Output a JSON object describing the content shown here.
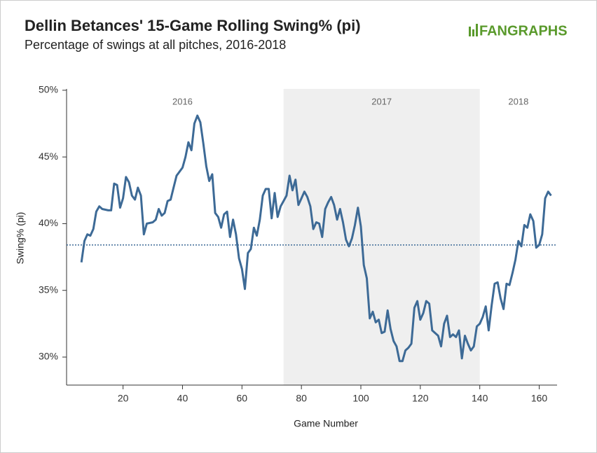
{
  "chart_data": {
    "type": "line",
    "title": "Dellin Betances' 15-Game Rolling Swing% (pi)",
    "subtitle": "Percentage of swings at all pitches, 2016-2018",
    "logo": "FANGRAPHS",
    "x_label": "Game Number",
    "y_label": "Swing% (pi)",
    "xlim": [
      1,
      166
    ],
    "ylim": [
      27.9,
      50.1
    ],
    "xticks": [
      20,
      40,
      60,
      80,
      100,
      120,
      140,
      160
    ],
    "yticks": [
      {
        "value": 30,
        "label": "30%"
      },
      {
        "value": 35,
        "label": "35%"
      },
      {
        "value": 40,
        "label": "40%"
      },
      {
        "value": 45,
        "label": "45%"
      },
      {
        "value": 50,
        "label": "50%"
      }
    ],
    "highlight": [
      74,
      140
    ],
    "average": 38.4,
    "annotations": [
      {
        "text": "2016",
        "x": 40
      },
      {
        "text": "2017",
        "x": 107
      },
      {
        "text": "2018",
        "x": 153
      }
    ],
    "series": [
      {
        "name": "Swing% (pi)",
        "color": "#3d6a96",
        "x": [
          6,
          7,
          8,
          9,
          10,
          11,
          12,
          13,
          15,
          16,
          17,
          18,
          19,
          20,
          21,
          22,
          23,
          24,
          25,
          26,
          27,
          28,
          30,
          31,
          32,
          33,
          34,
          35,
          36,
          37,
          38,
          40,
          41,
          42,
          43,
          44,
          45,
          46,
          47,
          48,
          49,
          50,
          51,
          52,
          53,
          54,
          55,
          56,
          57,
          58,
          59,
          60,
          61,
          62,
          63,
          64,
          65,
          66,
          67,
          68,
          69,
          70,
          71,
          72,
          73,
          74,
          75,
          76,
          77,
          78,
          79,
          80,
          81,
          82,
          83,
          84,
          85,
          86,
          87,
          88,
          89,
          90,
          91,
          92,
          93,
          94,
          95,
          96,
          97,
          98,
          99,
          100,
          101,
          102,
          103,
          104,
          105,
          106,
          107,
          108,
          109,
          110,
          111,
          112,
          113,
          114,
          115,
          116,
          117,
          118,
          119,
          120,
          121,
          122,
          123,
          124,
          125,
          126,
          127,
          128,
          129,
          130,
          131,
          132,
          133,
          134,
          135,
          136,
          137,
          138,
          139,
          140,
          141,
          142,
          143,
          144,
          145,
          146,
          147,
          148,
          149,
          150,
          151,
          152,
          153,
          154,
          155,
          156,
          157,
          158,
          159,
          160,
          161,
          162,
          163,
          164
        ],
        "values": [
          37.1,
          38.7,
          39.2,
          39.1,
          39.6,
          40.9,
          41.3,
          41.1,
          41.0,
          41.0,
          43.0,
          42.9,
          41.2,
          41.9,
          43.5,
          43.1,
          42.1,
          41.8,
          42.7,
          42.1,
          39.2,
          40.0,
          40.1,
          40.3,
          41.1,
          40.6,
          40.8,
          41.7,
          41.8,
          42.7,
          43.6,
          44.2,
          45.0,
          46.1,
          45.5,
          47.5,
          48.1,
          47.6,
          46.0,
          44.3,
          43.2,
          43.7,
          40.8,
          40.5,
          39.7,
          40.7,
          40.9,
          39.0,
          40.3,
          39.2,
          37.4,
          36.6,
          35.1,
          37.8,
          38.1,
          39.7,
          39.1,
          40.3,
          42.1,
          42.6,
          42.6,
          40.4,
          42.3,
          40.5,
          41.3,
          41.7,
          42.1,
          43.6,
          42.5,
          43.3,
          41.4,
          41.9,
          42.4,
          42.0,
          41.3,
          39.6,
          40.1,
          40.0,
          39.0,
          41.1,
          41.6,
          42.0,
          41.4,
          40.3,
          41.1,
          40.1,
          38.8,
          38.3,
          38.9,
          39.9,
          41.2,
          39.8,
          36.9,
          35.9,
          32.9,
          33.4,
          32.6,
          32.8,
          31.8,
          31.9,
          33.5,
          32.1,
          31.2,
          30.8,
          29.7,
          29.7,
          30.5,
          30.7,
          31.0,
          33.7,
          34.2,
          32.8,
          33.3,
          34.2,
          34.0,
          32.0,
          31.8,
          31.6,
          30.8,
          32.5,
          33.1,
          31.5,
          31.7,
          31.5,
          32.0,
          29.9,
          31.6,
          31.0,
          30.5,
          30.8,
          32.3,
          32.5,
          33.0,
          33.8,
          32.0,
          33.9,
          35.5,
          35.6,
          34.4,
          33.6,
          35.5,
          35.4,
          36.3,
          37.3,
          38.7,
          38.3,
          39.9,
          39.7,
          40.7,
          40.2,
          38.2,
          38.4,
          39.2,
          41.9,
          42.4,
          42.1
        ]
      }
    ]
  }
}
